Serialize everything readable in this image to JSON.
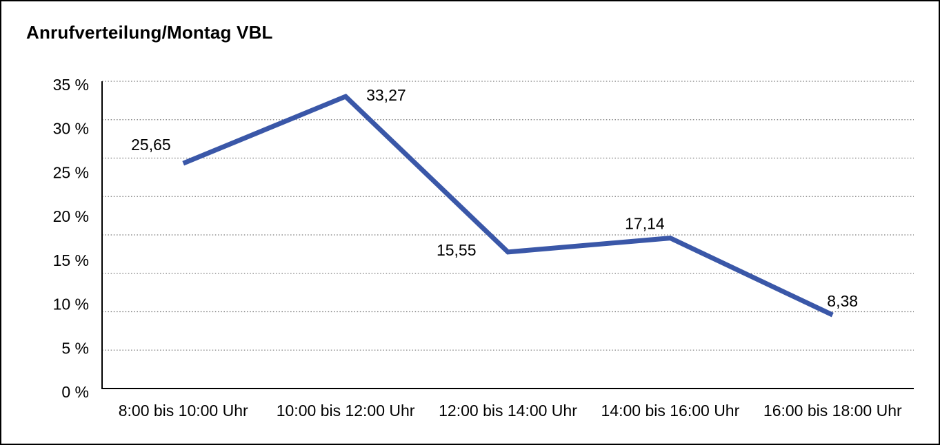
{
  "window": {
    "background": "#ffffff",
    "border_color": "#000000"
  },
  "chart_data": {
    "type": "line",
    "title": "Anrufverteilung/Montag VBL",
    "categories": [
      "8:00 bis 10:00 Uhr",
      "10:00 bis 12:00 Uhr",
      "12:00 bis 14:00 Uhr",
      "14:00 bis 16:00 Uhr",
      "16:00 bis 18:00 Uhr"
    ],
    "values": [
      25.65,
      33.27,
      15.55,
      17.14,
      8.38
    ],
    "point_labels": [
      "25,65",
      "33,27",
      "15,55",
      "17,14",
      "8,38"
    ],
    "xlabel": "",
    "ylabel": "",
    "ylim": [
      0,
      35
    ],
    "yticks": [
      0,
      5,
      10,
      15,
      20,
      25,
      30,
      35
    ],
    "ytick_labels": [
      "0 %",
      "5 %",
      "10 %",
      "15 %",
      "20 %",
      "25 %",
      "30 %",
      "35 %"
    ],
    "grid": "horizontal-dotted",
    "gridline_divisions": 8,
    "legend": "none",
    "line_color": "#3A57A8",
    "axis_color": "#000000",
    "gridline_color": "#7d7d7d",
    "text_color": "#000000"
  }
}
